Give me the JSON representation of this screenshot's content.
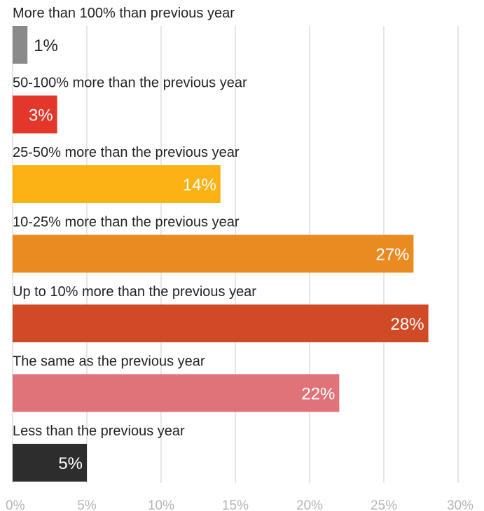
{
  "chart_data": {
    "type": "bar",
    "orientation": "horizontal",
    "title": "",
    "xlabel": "",
    "ylabel": "",
    "xlim": [
      0,
      30
    ],
    "grid": true,
    "categories": [
      "More than 100% than previous year",
      "50-100% more than the previous year",
      "25-50% more than the previous year",
      "10-25% more than the previous year",
      "Up to 10% more than the previous year",
      "The same as the previous year",
      "Less than the previous year"
    ],
    "values": [
      1,
      3,
      14,
      27,
      28,
      22,
      5
    ],
    "value_labels": [
      "1%",
      "3%",
      "14%",
      "27%",
      "28%",
      "22%",
      "5%"
    ],
    "colors": [
      "#8a8a8a",
      "#e2372a",
      "#fbb215",
      "#ea8b22",
      "#d04a26",
      "#e07379",
      "#2d2d2d"
    ],
    "x_ticks": [
      0,
      5,
      10,
      15,
      20,
      25,
      30
    ],
    "x_tick_labels": [
      "0%",
      "5%",
      "10%",
      "15%",
      "20%",
      "25%",
      "30%"
    ]
  }
}
